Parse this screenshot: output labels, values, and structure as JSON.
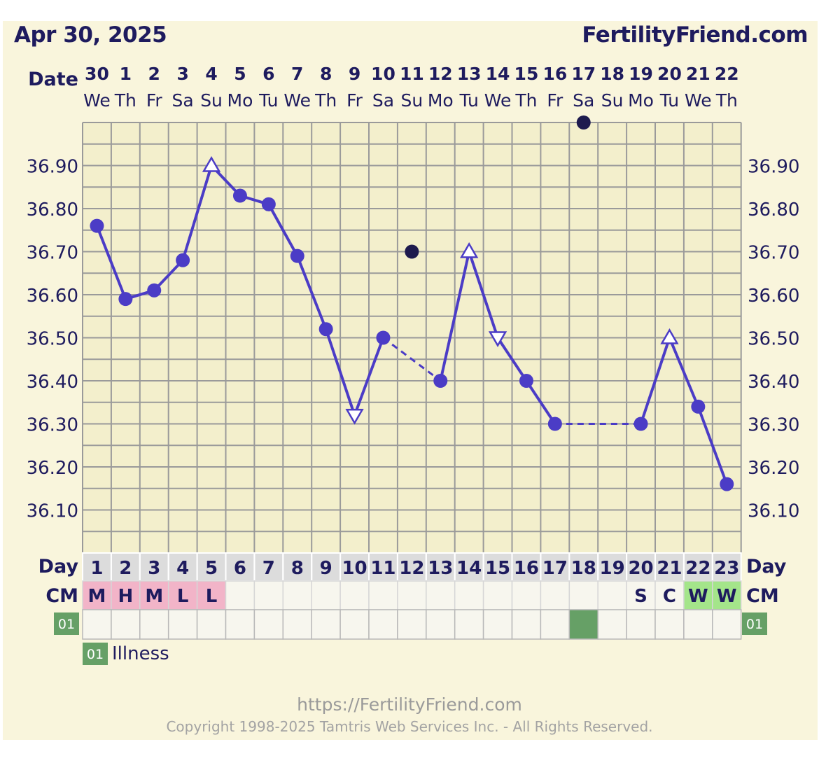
{
  "header": {
    "title": "Apr 30, 2025",
    "site": "FertilityFriend.com"
  },
  "labels": {
    "date": "Date",
    "day": "Day",
    "cm": "CM",
    "illness_code": "01",
    "illness_legend": "Illness"
  },
  "footer": {
    "url": "https://FertilityFriend.com",
    "copyright": "Copyright 1998-2025 Tamtris Web Services Inc. - All Rights Reserved."
  },
  "colors": {
    "line": "#4b3cc6",
    "grid": "#9a9a9a",
    "background": "#f9f5dc",
    "text": "#1e1b5e",
    "cm_pink": "#f2b4c8",
    "cm_green": "#a4e58a",
    "illness": "#66a066"
  },
  "chart_data": {
    "type": "line",
    "ylabel_unit": "temperature",
    "ylim": [
      36.0,
      37.0
    ],
    "y_ticks": [
      "36.10",
      "36.20",
      "36.30",
      "36.40",
      "36.50",
      "36.60",
      "36.70",
      "36.80",
      "36.90"
    ],
    "dates": [
      "30",
      "1",
      "2",
      "3",
      "4",
      "5",
      "6",
      "7",
      "8",
      "9",
      "10",
      "11",
      "12",
      "13",
      "14",
      "15",
      "16",
      "17",
      "18",
      "19",
      "20",
      "21",
      "22"
    ],
    "weekdays": [
      "We",
      "Th",
      "Fr",
      "Sa",
      "Su",
      "Mo",
      "Tu",
      "We",
      "Th",
      "Fr",
      "Sa",
      "Su",
      "Mo",
      "Tu",
      "We",
      "Th",
      "Fr",
      "Sa",
      "Su",
      "Mo",
      "Tu",
      "We",
      "Th"
    ],
    "days": [
      "1",
      "2",
      "3",
      "4",
      "5",
      "6",
      "7",
      "8",
      "9",
      "10",
      "11",
      "12",
      "13",
      "14",
      "15",
      "16",
      "17",
      "18",
      "19",
      "20",
      "21",
      "22",
      "23"
    ],
    "temps": [
      36.76,
      36.59,
      36.61,
      36.68,
      36.9,
      36.83,
      36.81,
      36.69,
      36.52,
      36.32,
      36.5,
      null,
      36.4,
      36.7,
      36.5,
      36.4,
      36.3,
      null,
      null,
      36.3,
      36.5,
      36.34,
      36.16
    ],
    "markers": [
      "circle",
      "circle",
      "circle",
      "circle",
      "triangle-up",
      "circle",
      "circle",
      "circle",
      "circle",
      "triangle-down",
      "circle",
      null,
      "circle",
      "triangle-up",
      "triangle-down",
      "circle",
      "circle",
      null,
      null,
      "circle",
      "triangle-up",
      "circle",
      "circle"
    ],
    "discarded": [
      {
        "day": "12",
        "temp": 36.7
      },
      {
        "day": "18",
        "temp": 37.0
      }
    ],
    "dashed_gaps": [
      [
        "11",
        "13"
      ],
      [
        "17",
        "20"
      ]
    ],
    "cm": [
      "M",
      "H",
      "M",
      "L",
      "L",
      "",
      "",
      "",
      "",
      "",
      "",
      "",
      "",
      "",
      "",
      "",
      "",
      "",
      "",
      "S",
      "C",
      "W",
      "W"
    ],
    "cm_color": [
      "pink",
      "pink",
      "pink",
      "pink",
      "pink",
      "",
      "",
      "",
      "",
      "",
      "",
      "",
      "",
      "",
      "",
      "",
      "",
      "",
      "",
      "",
      "",
      "green",
      "green"
    ],
    "illness_days": [
      "18"
    ]
  }
}
